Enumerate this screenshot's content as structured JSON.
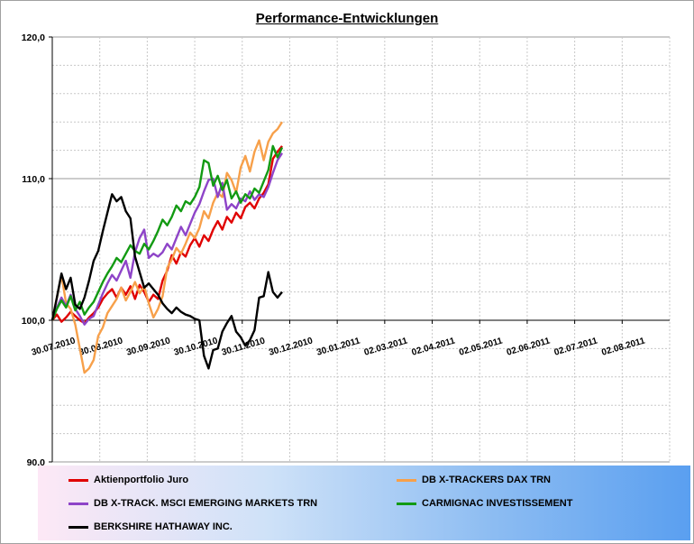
{
  "chart_data": {
    "type": "line",
    "title": "Performance-Entwicklungen",
    "ylim": [
      90,
      120
    ],
    "y_ticks": [
      "90,0",
      "100,0",
      "110,0",
      "120,0"
    ],
    "x_ticks": [
      "30.07.2010",
      "30.08.2010",
      "30.09.2010",
      "30.10.2010",
      "30.11.2010",
      "30.12.2010",
      "30.01.2011",
      "02.03.2011",
      "02.04.2011",
      "02.05.2011",
      "02.06.2011",
      "02.07.2011",
      "02.08.2011"
    ],
    "grid": true,
    "legend_position": "bottom",
    "series": [
      {
        "name": "Aktienportfolio Juro",
        "color": "#e00000",
        "x": [
          0,
          3,
          6,
          9,
          12,
          15,
          18,
          21,
          24,
          27,
          30,
          33,
          36,
          39,
          42,
          45,
          48,
          51,
          54,
          57,
          60,
          63,
          66,
          69,
          72,
          75,
          78,
          81,
          84,
          87,
          90,
          93,
          96,
          99,
          102,
          105,
          108,
          111,
          114,
          117,
          120,
          123,
          126,
          129,
          132,
          135,
          138,
          141,
          144,
          147,
          150
        ],
        "y": [
          100.0,
          100.4,
          99.9,
          100.2,
          100.6,
          100.3,
          100.0,
          99.8,
          100.2,
          100.5,
          100.9,
          101.5,
          101.9,
          102.2,
          101.6,
          102.3,
          101.8,
          102.4,
          101.5,
          102.5,
          102.0,
          101.3,
          101.8,
          101.5,
          102.8,
          103.5,
          104.6,
          104.0,
          104.8,
          104.5,
          105.3,
          105.8,
          105.2,
          106.0,
          105.6,
          106.4,
          107.0,
          106.4,
          107.3,
          106.9,
          107.6,
          107.2,
          108.0,
          108.3,
          107.9,
          108.6,
          109.0,
          109.6,
          111.4,
          111.9,
          112.3
        ]
      },
      {
        "name": "DB X-TRACKERS  DAX TRN",
        "color": "#f7a04a",
        "x": [
          0,
          3,
          6,
          9,
          12,
          15,
          18,
          21,
          24,
          27,
          30,
          33,
          36,
          39,
          42,
          45,
          48,
          51,
          54,
          57,
          60,
          63,
          66,
          69,
          72,
          75,
          78,
          81,
          84,
          87,
          90,
          93,
          96,
          99,
          102,
          105,
          108,
          111,
          114,
          117,
          120,
          123,
          126,
          129,
          132,
          135,
          138,
          141,
          144,
          147,
          150
        ],
        "y": [
          100.0,
          101.6,
          103.2,
          101.2,
          100.8,
          99.7,
          98.0,
          96.3,
          96.6,
          97.2,
          98.9,
          99.5,
          100.5,
          101.0,
          101.5,
          102.3,
          101.4,
          102.0,
          102.7,
          101.9,
          102.4,
          101.2,
          100.2,
          100.8,
          101.7,
          103.7,
          104.3,
          105.1,
          104.7,
          105.4,
          106.2,
          105.8,
          106.5,
          107.7,
          107.2,
          108.3,
          109.0,
          108.7,
          110.4,
          109.9,
          109.0,
          110.8,
          111.6,
          110.5,
          111.9,
          112.7,
          111.3,
          112.6,
          113.2,
          113.5,
          114.0
        ]
      },
      {
        "name": "DB X-TRACK.  MSCI EMERGING MARKETS TRN",
        "color": "#8e44c8",
        "x": [
          0,
          3,
          6,
          9,
          12,
          15,
          18,
          21,
          24,
          27,
          30,
          33,
          36,
          39,
          42,
          45,
          48,
          51,
          54,
          57,
          60,
          63,
          66,
          69,
          72,
          75,
          78,
          81,
          84,
          87,
          90,
          93,
          96,
          99,
          102,
          105,
          108,
          111,
          114,
          117,
          120,
          123,
          126,
          129,
          132,
          135,
          138,
          141,
          144,
          147,
          150
        ],
        "y": [
          100.0,
          100.9,
          101.6,
          101.0,
          101.8,
          100.8,
          100.3,
          99.7,
          100.1,
          100.3,
          101.1,
          101.9,
          102.6,
          103.2,
          102.8,
          103.5,
          104.2,
          103.0,
          104.8,
          105.8,
          106.4,
          104.4,
          104.7,
          104.5,
          104.8,
          105.4,
          105.0,
          105.8,
          106.6,
          106.0,
          106.8,
          107.6,
          108.2,
          109.1,
          109.9,
          110.0,
          108.7,
          109.7,
          107.8,
          108.2,
          107.9,
          108.6,
          108.4,
          109.1,
          108.5,
          108.9,
          108.7,
          109.4,
          110.4,
          111.3,
          111.8
        ]
      },
      {
        "name": "CARMIGNAC INVESTISSEMENT",
        "color": "#129a12",
        "x": [
          0,
          3,
          6,
          9,
          12,
          15,
          18,
          21,
          24,
          27,
          30,
          33,
          36,
          39,
          42,
          45,
          48,
          51,
          54,
          57,
          60,
          63,
          66,
          69,
          72,
          75,
          78,
          81,
          84,
          87,
          90,
          93,
          96,
          99,
          102,
          105,
          108,
          111,
          114,
          117,
          120,
          123,
          126,
          129,
          132,
          135,
          138,
          141,
          144,
          147,
          150
        ],
        "y": [
          100.0,
          100.8,
          101.4,
          100.9,
          101.7,
          100.7,
          101.3,
          100.4,
          100.9,
          101.3,
          102.0,
          102.7,
          103.3,
          103.8,
          104.4,
          104.1,
          104.7,
          105.3,
          104.9,
          104.7,
          105.4,
          105.0,
          105.6,
          106.3,
          107.1,
          106.7,
          107.3,
          108.1,
          107.7,
          108.4,
          108.2,
          108.7,
          109.4,
          111.3,
          111.1,
          109.5,
          110.2,
          109.2,
          109.9,
          108.6,
          109.1,
          108.3,
          108.9,
          108.6,
          109.3,
          109.0,
          109.8,
          110.6,
          112.3,
          111.5,
          112.2
        ]
      },
      {
        "name": "BERKSHIRE HATHAWAY INC.",
        "color": "#000000",
        "x": [
          0,
          3,
          6,
          9,
          12,
          15,
          18,
          21,
          24,
          27,
          30,
          33,
          36,
          39,
          42,
          45,
          48,
          51,
          54,
          57,
          60,
          63,
          66,
          69,
          72,
          75,
          78,
          81,
          84,
          87,
          90,
          93,
          96,
          99,
          102,
          105,
          108,
          111,
          114,
          117,
          120,
          123,
          126,
          129,
          132,
          135,
          138,
          141,
          144,
          147,
          150
        ],
        "y": [
          100.0,
          101.6,
          103.3,
          102.2,
          103.0,
          101.1,
          100.8,
          101.6,
          102.8,
          104.2,
          104.9,
          106.3,
          107.6,
          108.9,
          108.4,
          108.7,
          107.7,
          107.2,
          104.5,
          103.4,
          102.3,
          102.6,
          102.2,
          101.8,
          101.2,
          100.8,
          100.5,
          100.9,
          100.6,
          100.4,
          100.3,
          100.1,
          100.0,
          97.5,
          96.6,
          97.9,
          98.0,
          99.2,
          99.8,
          100.3,
          99.2,
          98.8,
          98.2,
          98.6,
          99.3,
          101.6,
          101.7,
          103.4,
          102.0,
          101.6,
          102.0
        ]
      }
    ]
  }
}
